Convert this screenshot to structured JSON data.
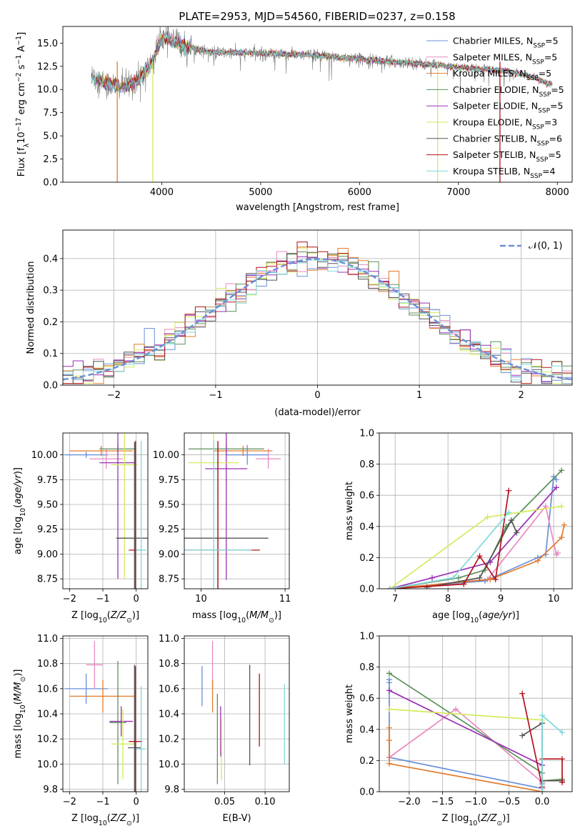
{
  "figure_title": "PLATE=2953, MJD=54560, FIBERID=0237, z=0.158",
  "series": [
    {
      "name": "Chabrier MILES",
      "nssp": "5",
      "color": "#6a8fd8"
    },
    {
      "name": "Salpeter MILES",
      "nssp": "5",
      "color": "#e88ac1"
    },
    {
      "name": "Kroupa MILES",
      "nssp": "5",
      "color": "#e37b2b"
    },
    {
      "name": "Chabrier ELODIE",
      "nssp": "5",
      "color": "#5c8f5c"
    },
    {
      "name": "Salpeter ELODIE",
      "nssp": "5",
      "color": "#9b2fb5"
    },
    {
      "name": "Kroupa ELODIE",
      "nssp": "3",
      "color": "#d4ea5e"
    },
    {
      "name": "Chabrier STELIB",
      "nssp": "6",
      "color": "#545454"
    },
    {
      "name": "Salpeter STELIB",
      "nssp": "5",
      "color": "#b3111a"
    },
    {
      "name": "Kroupa STELIB",
      "nssp": "4",
      "color": "#7fd9dc"
    }
  ],
  "chart_data": [
    {
      "id": "spectrum",
      "type": "line",
      "xlabel": "wavelength [Angstrom, rest frame]",
      "ylabel": "Flux [f_λ 10^-17 erg cm^-2 s^-1 A^-1]",
      "xlim": [
        3000,
        8150
      ],
      "ylim": [
        0,
        16.8
      ],
      "xticks": [
        4000,
        5000,
        6000,
        7000,
        8000
      ],
      "yticks": [
        0.0,
        2.5,
        5.0,
        7.5,
        10.0,
        12.5,
        15.0
      ],
      "ytick_labels": [
        "0.0",
        "2.5",
        "5.0",
        "7.5",
        "10.0",
        "12.5",
        "15.0"
      ],
      "data_trend": {
        "x": [
          3300,
          3450,
          3600,
          3750,
          3900,
          4000,
          4200,
          4500,
          5000,
          5500,
          6000,
          6300,
          6500,
          7000,
          7500,
          7800,
          7900
        ],
        "y": [
          11.4,
          10.6,
          10.3,
          10.9,
          12.8,
          15.6,
          14.8,
          14.0,
          13.9,
          13.7,
          13.3,
          13.0,
          12.9,
          12.4,
          12.0,
          11.2,
          10.6
        ]
      },
      "model_dropouts": [
        {
          "series": "Kroupa MILES",
          "x": 3550
        },
        {
          "series": "Kroupa ELODIE",
          "x": 3910
        },
        {
          "series": "Kroupa ELODIE",
          "x": 6790
        },
        {
          "series": "Salpeter STELIB",
          "x": 7420
        }
      ]
    },
    {
      "id": "residual-hist",
      "type": "step-histogram",
      "xlabel": "(data-model)/error",
      "ylabel": "Normed distribution",
      "xlim": [
        -2.5,
        2.5
      ],
      "ylim": [
        0,
        0.49
      ],
      "xticks": [
        -2,
        -1,
        0,
        1,
        2
      ],
      "xtick_labels": [
        "−2",
        "−1",
        "0",
        "1",
        "2"
      ],
      "yticks": [
        0.0,
        0.1,
        0.2,
        0.3,
        0.4
      ],
      "ytick_labels": [
        "0.0",
        "0.1",
        "0.2",
        "0.3",
        "0.4"
      ],
      "bin_width": 0.1,
      "reference_label": "𝒩(0, 1)"
    },
    {
      "id": "age-vs-Z",
      "type": "errorbar",
      "xlabel": "Z [log10(Z/Z⊙)]",
      "ylabel": "age  [log10(age/yr)]",
      "xlim": [
        -2.2,
        0.35
      ],
      "ylim": [
        8.65,
        10.22
      ],
      "xticks": [
        -2,
        -1,
        0
      ],
      "xtick_labels": [
        "−2",
        "−1",
        "0"
      ],
      "yticks": [
        8.75,
        9.0,
        9.25,
        9.5,
        9.75,
        10.0
      ],
      "ytick_labels": [
        "8.75",
        "9.00",
        "9.25",
        "9.50",
        "9.75",
        "10.00"
      ],
      "points": [
        {
          "series": "Chabrier MILES",
          "x": -1.5,
          "xerr": 0.65,
          "y": 10.0,
          "yerr": 0.03
        },
        {
          "series": "Salpeter MILES",
          "x": -0.9,
          "xerr": 0.5,
          "y": 9.96,
          "yerr": 0.1
        },
        {
          "series": "Kroupa MILES",
          "x": -1.05,
          "xerr": 0.95,
          "y": 10.04,
          "yerr": 0.05
        },
        {
          "series": "Chabrier ELODIE",
          "x": -0.55,
          "xerr": 0.55,
          "y": 10.06,
          "yerr": 0.04
        },
        {
          "series": "Salpeter ELODIE",
          "x": -0.55,
          "xerr": 0.55,
          "y": 9.92,
          "yerr": 1.17
        },
        {
          "series": "Kroupa ELODIE",
          "x": -0.35,
          "xerr": 0.4,
          "y": 9.9,
          "yerr": 1.15
        },
        {
          "series": "Chabrier STELIB",
          "x": -0.05,
          "xerr": 0.55,
          "y": 9.16,
          "yerr": 0.97
        },
        {
          "series": "Salpeter STELIB",
          "x": -0.02,
          "xerr": 0.2,
          "y": 9.04,
          "yerr": 1.1
        },
        {
          "series": "Kroupa STELIB",
          "x": 0.15,
          "xerr": 0.15,
          "y": 9.04,
          "yerr": 1.1
        }
      ]
    },
    {
      "id": "age-vs-mass",
      "type": "errorbar",
      "xlabel": "mass [log10(M/M⊙)]",
      "ylabel": "",
      "xlim": [
        9.8,
        11.05
      ],
      "ylim": [
        8.65,
        10.22
      ],
      "xticks": [
        10,
        11
      ],
      "xtick_labels": [
        "10",
        "11"
      ],
      "yticks": [
        8.75,
        9.0,
        9.25,
        9.5,
        9.75,
        10.0
      ],
      "ytick_labels": [
        "8.75",
        "9.00",
        "9.25",
        "9.50",
        "9.75",
        "10.00"
      ],
      "points": [
        {
          "series": "Chabrier MILES",
          "x": 10.55,
          "xerr": 0.25,
          "y": 10.0,
          "yerr": 0.1
        },
        {
          "series": "Salpeter MILES",
          "x": 10.8,
          "xerr": 0.15,
          "y": 9.96,
          "yerr": 0.1
        },
        {
          "series": "Kroupa MILES",
          "x": 10.5,
          "xerr": 0.35,
          "y": 10.04,
          "yerr": 0.05
        },
        {
          "series": "Chabrier ELODIE",
          "x": 10.3,
          "xerr": 0.45,
          "y": 10.06,
          "yerr": 0.06
        },
        {
          "series": "Salpeter ELODIE",
          "x": 10.3,
          "xerr": 0.25,
          "y": 9.86,
          "yerr": 1.12
        },
        {
          "series": "Kroupa ELODIE",
          "x": 10.15,
          "xerr": 0.3,
          "y": 9.92,
          "yerr": 1.15
        },
        {
          "series": "Chabrier STELIB",
          "x": 10.2,
          "xerr": 0.6,
          "y": 9.16,
          "yerr": 0.97
        },
        {
          "series": "Salpeter STELIB",
          "x": 10.2,
          "xerr": 0.5,
          "y": 9.04,
          "yerr": 1.1
        },
        {
          "series": "Kroupa STELIB",
          "x": 10.15,
          "xerr": 0.45,
          "y": 9.04,
          "yerr": 1.1
        }
      ]
    },
    {
      "id": "weight-vs-age",
      "type": "line",
      "xlabel": "age  [log10(age/yr)]",
      "ylabel": "mass weight",
      "xlim": [
        6.7,
        10.35
      ],
      "ylim": [
        0,
        1.0
      ],
      "xticks": [
        7,
        8,
        9,
        10
      ],
      "xtick_labels": [
        "7",
        "8",
        "9",
        "10"
      ],
      "yticks": [
        0.0,
        0.2,
        0.4,
        0.6,
        0.8,
        1.0
      ],
      "ytick_labels": [
        "0.0",
        "0.2",
        "0.4",
        "0.6",
        "0.8",
        "1.0"
      ],
      "lines": [
        {
          "series": "Chabrier MILES",
          "x": [
            6.9,
            8.7,
            9.7,
            9.85,
            10.0,
            10.05
          ],
          "y": [
            0.0,
            0.05,
            0.2,
            0.22,
            0.72,
            0.7
          ]
        },
        {
          "series": "Salpeter MILES",
          "x": [
            6.9,
            8.75,
            9.85,
            10.05,
            10.08
          ],
          "y": [
            0.0,
            0.06,
            0.53,
            0.22,
            0.23
          ]
        },
        {
          "series": "Kroupa MILES",
          "x": [
            6.9,
            8.8,
            9.7,
            10.15,
            10.2
          ],
          "y": [
            0.0,
            0.06,
            0.18,
            0.33,
            0.41
          ]
        },
        {
          "series": "Chabrier ELODIE",
          "x": [
            6.9,
            8.2,
            8.7,
            9.1,
            10.15
          ],
          "y": [
            0.0,
            0.07,
            0.12,
            0.4,
            0.76
          ]
        },
        {
          "series": "Salpeter ELODIE",
          "x": [
            6.9,
            7.7,
            8.8,
            10.05
          ],
          "y": [
            0.0,
            0.07,
            0.17,
            0.65
          ]
        },
        {
          "series": "Kroupa ELODIE",
          "x": [
            6.9,
            8.75,
            10.15
          ],
          "y": [
            0.0,
            0.46,
            0.53
          ]
        },
        {
          "series": "Chabrier STELIB",
          "x": [
            7.6,
            8.6,
            9.2,
            9.3
          ],
          "y": [
            0.01,
            0.07,
            0.44,
            0.36
          ]
        },
        {
          "series": "Salpeter STELIB",
          "x": [
            6.9,
            8.3,
            8.6,
            8.9,
            9.15
          ],
          "y": [
            0.0,
            0.03,
            0.21,
            0.06,
            0.63
          ]
        },
        {
          "series": "Kroupa STELIB",
          "x": [
            6.9,
            8.1,
            9.15
          ],
          "y": [
            0.0,
            0.07,
            0.49
          ]
        }
      ]
    },
    {
      "id": "mass-vs-Z",
      "type": "errorbar",
      "xlabel": "Z [log10(Z/Z⊙)]",
      "ylabel": "mass [log10(M/M⊙)]",
      "xlim": [
        -2.2,
        0.35
      ],
      "ylim": [
        9.78,
        11.02
      ],
      "xticks": [
        -2,
        -1,
        0
      ],
      "xtick_labels": [
        "−2",
        "−1",
        "0"
      ],
      "yticks": [
        9.8,
        10.0,
        10.2,
        10.4,
        10.6,
        10.8,
        11.0
      ],
      "ytick_labels": [
        "9.8",
        "10.0",
        "10.2",
        "10.4",
        "10.6",
        "10.8",
        "11.0"
      ],
      "points": [
        {
          "series": "Chabrier MILES",
          "x": -1.5,
          "xerr": 0.65,
          "y": 10.6,
          "yerr": 0.12
        },
        {
          "series": "Salpeter MILES",
          "x": -1.25,
          "xerr": 0.25,
          "y": 10.79,
          "yerr": 0.19
        },
        {
          "series": "Kroupa MILES",
          "x": -1.0,
          "xerr": 1.0,
          "y": 10.54,
          "yerr": 0.13
        },
        {
          "series": "Chabrier ELODIE",
          "x": -0.55,
          "xerr": 0.25,
          "y": 10.33,
          "yerr": 0.49
        },
        {
          "series": "Salpeter ELODIE",
          "x": -0.45,
          "xerr": 0.35,
          "y": 10.34,
          "yerr": 0.12
        },
        {
          "series": "Kroupa ELODIE",
          "x": -0.4,
          "xerr": 0.35,
          "y": 10.16,
          "yerr": 0.28
        },
        {
          "series": "Chabrier STELIB",
          "x": -0.05,
          "xerr": 0.2,
          "y": 10.13,
          "yerr": 0.66
        },
        {
          "series": "Salpeter STELIB",
          "x": -0.02,
          "xerr": 0.2,
          "y": 10.18,
          "yerr": 0.6
        },
        {
          "series": "Kroupa STELIB",
          "x": 0.15,
          "xerr": 0.15,
          "y": 10.12,
          "yerr": 0.5
        }
      ]
    },
    {
      "id": "mass-vs-ebv",
      "type": "errorbar",
      "xlabel": "E(B-V)",
      "ylabel": "",
      "xlim": [
        0.0,
        0.13
      ],
      "ylim": [
        9.78,
        11.02
      ],
      "xticks": [
        0.05,
        0.1
      ],
      "xtick_labels": [
        "0.05",
        "0.10"
      ],
      "yticks": [
        9.8,
        10.0,
        10.2,
        10.4,
        10.6,
        10.8,
        11.0
      ],
      "ytick_labels": [
        "9.8",
        "10.0",
        "10.2",
        "10.4",
        "10.6",
        "10.8",
        "11.0"
      ],
      "points": [
        {
          "series": "Chabrier MILES",
          "x": 0.022,
          "xerr": 0,
          "y": 10.62,
          "yerr": 0.16
        },
        {
          "series": "Salpeter MILES",
          "x": 0.035,
          "xerr": 0,
          "y": 10.8,
          "yerr": 0.18
        },
        {
          "series": "Kroupa MILES",
          "x": 0.035,
          "xerr": 0,
          "y": 10.54,
          "yerr": 0.13
        },
        {
          "series": "Chabrier ELODIE",
          "x": 0.041,
          "xerr": 0,
          "y": 10.2,
          "yerr": 0.36
        },
        {
          "series": "Salpeter ELODIE",
          "x": 0.045,
          "xerr": 0,
          "y": 10.26,
          "yerr": 0.2
        },
        {
          "series": "Kroupa ELODIE",
          "x": 0.046,
          "xerr": 0,
          "y": 10.12,
          "yerr": 0.25
        },
        {
          "series": "Chabrier STELIB",
          "x": 0.081,
          "xerr": 0,
          "y": 10.39,
          "yerr": 0.4
        },
        {
          "series": "Salpeter STELIB",
          "x": 0.093,
          "xerr": 0,
          "y": 10.43,
          "yerr": 0.29
        },
        {
          "series": "Kroupa STELIB",
          "x": 0.124,
          "xerr": 0,
          "y": 10.32,
          "yerr": 0.32
        }
      ]
    },
    {
      "id": "weight-vs-Z",
      "type": "line",
      "xlabel": "Z [log10(Z/Z⊙)]",
      "ylabel": "mass weight",
      "xlim": [
        -2.45,
        0.45
      ],
      "ylim": [
        0,
        1.0
      ],
      "xticks": [
        -2.0,
        -1.5,
        -1.0,
        -0.5,
        0.0
      ],
      "xtick_labels": [
        "−2.0",
        "−1.5",
        "−1.0",
        "−0.5",
        "0.0"
      ],
      "yticks": [
        0.0,
        0.2,
        0.4,
        0.6,
        0.8,
        1.0
      ],
      "ytick_labels": [
        "0.0",
        "0.2",
        "0.4",
        "0.6",
        "0.8",
        "1.0"
      ],
      "lines": [
        {
          "series": "Chabrier MILES",
          "x": [
            -2.3,
            -2.3,
            -2.3,
            0.0,
            0.0
          ],
          "y": [
            0.72,
            0.7,
            0.22,
            0.02,
            0.05
          ]
        },
        {
          "series": "Salpeter MILES",
          "x": [
            -2.3,
            -1.3,
            0.0,
            0.0
          ],
          "y": [
            0.22,
            0.53,
            0.06,
            0.02
          ]
        },
        {
          "series": "Kroupa MILES",
          "x": [
            -2.3,
            -2.3,
            -2.3,
            0.0
          ],
          "y": [
            0.41,
            0.33,
            0.18,
            0.0
          ]
        },
        {
          "series": "Chabrier ELODIE",
          "x": [
            -2.3,
            0.0,
            0.0,
            0.3
          ],
          "y": [
            0.76,
            0.12,
            0.07,
            0.08
          ]
        },
        {
          "series": "Salpeter ELODIE",
          "x": [
            -2.3,
            0.0,
            0.0
          ],
          "y": [
            0.65,
            0.17,
            0.07
          ]
        },
        {
          "series": "Kroupa ELODIE",
          "x": [
            -2.3,
            0.0,
            0.0
          ],
          "y": [
            0.53,
            0.46,
            0.0
          ]
        },
        {
          "series": "Chabrier STELIB",
          "x": [
            -0.3,
            0.0,
            0.0,
            0.3
          ],
          "y": [
            0.36,
            0.44,
            0.07,
            0.07
          ]
        },
        {
          "series": "Salpeter STELIB",
          "x": [
            -0.3,
            0.0,
            0.0,
            0.3,
            0.3
          ],
          "y": [
            0.63,
            0.03,
            0.21,
            0.21,
            0.06
          ]
        },
        {
          "series": "Kroupa STELIB",
          "x": [
            0.0,
            0.0,
            0.3
          ],
          "y": [
            0.0,
            0.49,
            0.38
          ]
        }
      ]
    }
  ]
}
